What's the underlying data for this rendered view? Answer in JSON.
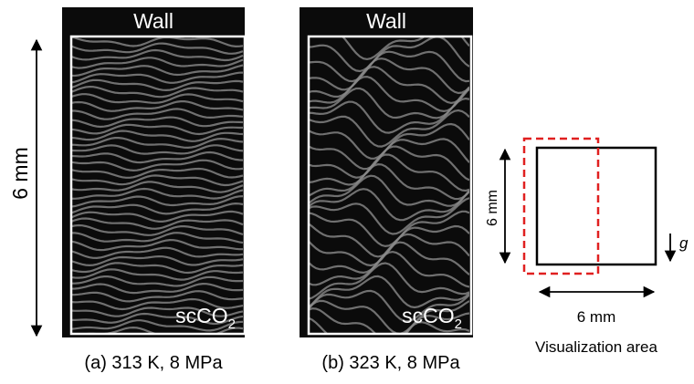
{
  "panels": [
    {
      "wall": "Wall",
      "fluid": {
        "text": "scCO",
        "subscript": "2"
      },
      "caption": "(a) 313 K, 8 MPa"
    },
    {
      "wall": "Wall",
      "fluid": {
        "text": "scCO",
        "subscript": "2"
      },
      "caption": "(b) 323 K, 8 MPa"
    }
  ],
  "scale_label": "6 mm",
  "schematic": {
    "height_label": "6 mm",
    "width_label": "6 mm",
    "gravity": "g",
    "caption": "Visualization area"
  }
}
